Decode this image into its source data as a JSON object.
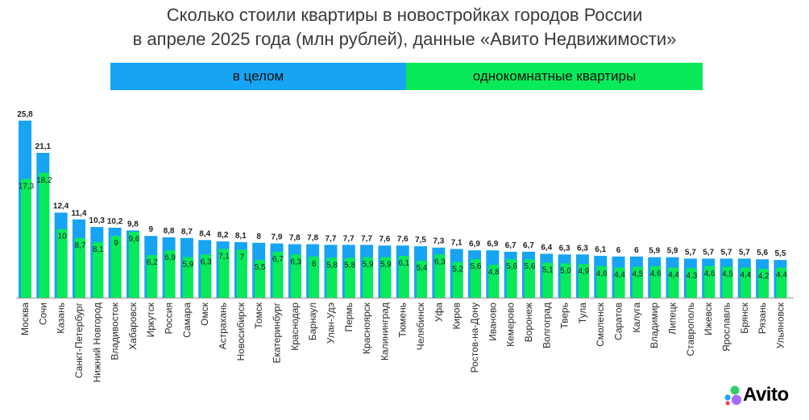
{
  "title": {
    "line1": "Сколько стоили квартиры в новостройках городов России",
    "line2": "в апреле 2025 года (млн рублей), данные «Авито Недвижимости»"
  },
  "legend": {
    "all_label": "в целом",
    "one_room_label": "однокомнатные квартиры"
  },
  "logo_text": "Avito",
  "colors": {
    "all": "#17a4f3",
    "one_room": "#08ea5a",
    "title": "#3a3a3a",
    "labels": "#222222"
  },
  "chart_data": {
    "type": "bar",
    "title": "Сколько стоили квартиры в новостройках городов России в апреле 2025 года (млн рублей), данные «Авито Недвижимости»",
    "categories": [
      "Москва",
      "Сочи",
      "Казань",
      "Санкт-Петербург",
      "Нижний Новгород",
      "Владивосток",
      "Хабаровск",
      "Иркутск",
      "Россия",
      "Самара",
      "Омск",
      "Астрахань",
      "Новосибирск",
      "Томск",
      "Екатеринбург",
      "Краснодар",
      "Барнаул",
      "Улан-Удэ",
      "Пермь",
      "Красноярск",
      "Калининград",
      "Тюмень",
      "Челябинск",
      "Уфа",
      "Киров",
      "Ростов-на-Дону",
      "Иваново",
      "Кемерово",
      "Воронеж",
      "Волгоград",
      "Тверь",
      "Тула",
      "Смоленск",
      "Саратов",
      "Калуга",
      "Владимир",
      "Липецк",
      "Ставрополь",
      "Ижевск",
      "Ярославль",
      "Брянск",
      "Рязань",
      "Ульяновск"
    ],
    "series": [
      {
        "name": "в целом",
        "values": [
          25.8,
          21.1,
          12.4,
          11.4,
          10.3,
          10.2,
          9.8,
          9,
          8.8,
          8.7,
          8.4,
          8.2,
          8.1,
          8,
          7.9,
          7.8,
          7.8,
          7.7,
          7.7,
          7.7,
          7.6,
          7.6,
          7.5,
          7.3,
          7.1,
          6.9,
          6.9,
          6.7,
          6.7,
          6.4,
          6.3,
          6.3,
          6.1,
          6,
          6,
          5.9,
          5.9,
          5.7,
          5.7,
          5.7,
          5.7,
          5.6,
          5.5
        ],
        "labels": [
          "25,8",
          "21,1",
          "12,4",
          "11,4",
          "10,3",
          "10,2",
          "9,8",
          "9",
          "8,8",
          "8,7",
          "8,4",
          "8,2",
          "8,1",
          "8",
          "7,9",
          "7,8",
          "7,8",
          "7,7",
          "7,7",
          "7,7",
          "7,6",
          "7,6",
          "7,5",
          "7,3",
          "7,1",
          "6,9",
          "6,9",
          "6,7",
          "6,7",
          "6,4",
          "6,3",
          "6,3",
          "6,1",
          "6",
          "6",
          "5,9",
          "5,9",
          "5,7",
          "5,7",
          "5,7",
          "5,7",
          "5,6",
          "5,5"
        ]
      },
      {
        "name": "однокомнатные квартиры",
        "values": [
          17.3,
          18.2,
          10,
          8.7,
          8.1,
          9,
          9.6,
          6.2,
          6.9,
          5.9,
          6.3,
          7.1,
          7,
          5.5,
          6.7,
          6.3,
          6,
          5.8,
          5.8,
          5.9,
          5.9,
          6.1,
          5.4,
          6.3,
          5.2,
          5.6,
          4.8,
          5.6,
          5.6,
          5.1,
          5.0,
          4.9,
          4.6,
          4.4,
          4.5,
          4.6,
          4.4,
          4.3,
          4.6,
          4.5,
          4.4,
          4.2,
          4.4
        ],
        "labels": [
          "17,3",
          "18,2",
          "10",
          "8,7",
          "8,1",
          "9",
          "9,6",
          "6,2",
          "6,9",
          "5,9",
          "6,3",
          "7,1",
          "7",
          "5,5",
          "6,7",
          "6,3",
          "6",
          "5,8",
          "5,8",
          "5,9",
          "5,9",
          "6,1",
          "5,4",
          "6,3",
          "5,2",
          "5,6",
          "4,8",
          "5,6",
          "5,6",
          "5,1",
          "5,0",
          "4,9",
          "4,6",
          "4,4",
          "4,5",
          "4,6",
          "4,4",
          "4,3",
          "4,6",
          "4,5",
          "4,4",
          "4,2",
          "4,4"
        ]
      }
    ],
    "legend": "top",
    "grid": false
  }
}
